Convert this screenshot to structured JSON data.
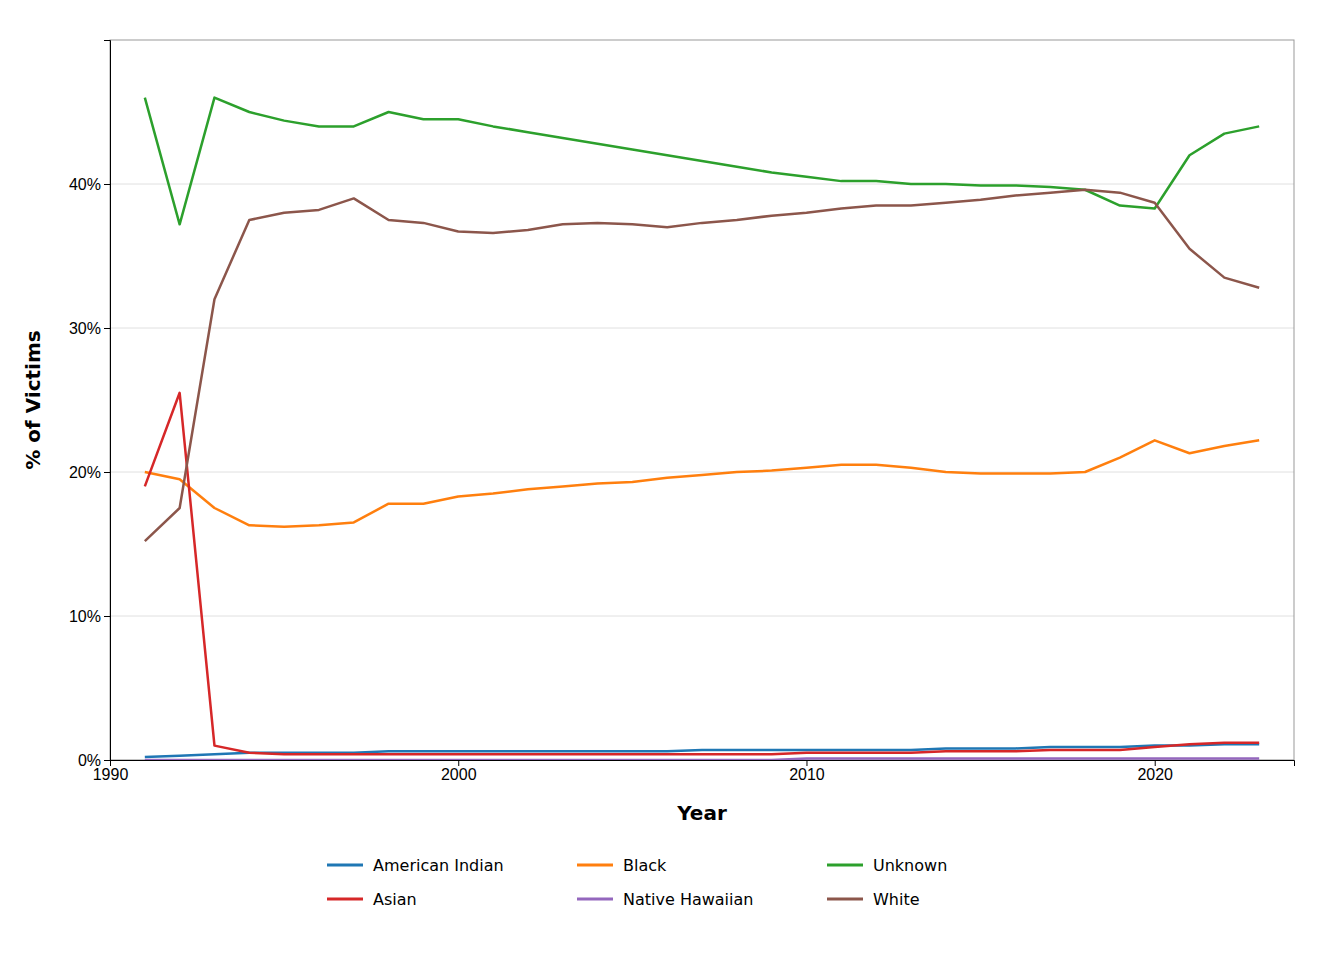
{
  "chart_data": {
    "type": "line",
    "xlabel": "Year",
    "ylabel": "% of Victims",
    "x": [
      1991,
      1992,
      1993,
      1994,
      1995,
      1996,
      1997,
      1998,
      1999,
      2000,
      2001,
      2002,
      2003,
      2004,
      2005,
      2006,
      2007,
      2008,
      2009,
      2010,
      2011,
      2012,
      2013,
      2014,
      2015,
      2016,
      2017,
      2018,
      2019,
      2020,
      2021,
      2022,
      2023
    ],
    "series": [
      {
        "name": "American Indian",
        "values": [
          0.002,
          0.003,
          0.004,
          0.005,
          0.005,
          0.005,
          0.005,
          0.006,
          0.006,
          0.006,
          0.006,
          0.006,
          0.006,
          0.006,
          0.006,
          0.006,
          0.007,
          0.007,
          0.007,
          0.007,
          0.007,
          0.007,
          0.007,
          0.008,
          0.008,
          0.008,
          0.009,
          0.009,
          0.009,
          0.01,
          0.01,
          0.011,
          0.011
        ]
      },
      {
        "name": "Black",
        "values": [
          0.2,
          0.195,
          0.175,
          0.163,
          0.162,
          0.163,
          0.165,
          0.178,
          0.178,
          0.183,
          0.185,
          0.188,
          0.19,
          0.192,
          0.193,
          0.196,
          0.198,
          0.2,
          0.201,
          0.203,
          0.205,
          0.205,
          0.203,
          0.2,
          0.199,
          0.199,
          0.199,
          0.2,
          0.21,
          0.222,
          0.213,
          0.218,
          0.222
        ]
      },
      {
        "name": "Unknown",
        "values": [
          0.46,
          0.372,
          0.46,
          0.45,
          0.444,
          0.44,
          0.44,
          0.45,
          0.445,
          0.445,
          0.44,
          0.436,
          0.432,
          0.428,
          0.424,
          0.42,
          0.416,
          0.412,
          0.408,
          0.405,
          0.402,
          0.402,
          0.4,
          0.4,
          0.399,
          0.399,
          0.398,
          0.396,
          0.385,
          0.383,
          0.42,
          0.435,
          0.44
        ]
      },
      {
        "name": "Asian",
        "values": [
          0.19,
          0.255,
          0.01,
          0.005,
          0.004,
          0.004,
          0.004,
          0.004,
          0.004,
          0.004,
          0.004,
          0.004,
          0.004,
          0.004,
          0.004,
          0.004,
          0.004,
          0.004,
          0.004,
          0.005,
          0.005,
          0.005,
          0.005,
          0.006,
          0.006,
          0.006,
          0.007,
          0.007,
          0.007,
          0.009,
          0.011,
          0.012,
          0.012
        ]
      },
      {
        "name": "Native Hawaiian",
        "values": [
          0.0,
          0.0,
          0.0,
          0.0,
          0.0,
          0.0,
          0.0,
          0.0,
          0.0,
          0.0,
          0.0,
          0.0,
          0.0,
          0.0,
          0.0,
          0.0,
          0.0,
          0.0,
          0.0,
          0.001,
          0.001,
          0.001,
          0.001,
          0.001,
          0.001,
          0.001,
          0.001,
          0.001,
          0.001,
          0.001,
          0.001,
          0.001,
          0.001
        ]
      },
      {
        "name": "White",
        "values": [
          0.152,
          0.175,
          0.32,
          0.375,
          0.38,
          0.382,
          0.39,
          0.375,
          0.373,
          0.367,
          0.366,
          0.368,
          0.372,
          0.373,
          0.372,
          0.37,
          0.373,
          0.375,
          0.378,
          0.38,
          0.383,
          0.385,
          0.385,
          0.387,
          0.389,
          0.392,
          0.394,
          0.396,
          0.394,
          0.387,
          0.355,
          0.335,
          0.328
        ]
      }
    ],
    "xlim": [
      1990,
      2024
    ],
    "xticks": [
      1990,
      2000,
      2010,
      2020
    ],
    "ylim": [
      0,
      0.5
    ],
    "yticks": [
      {
        "value": 0.0,
        "label": "0%"
      },
      {
        "value": 0.1,
        "label": "10%"
      },
      {
        "value": 0.2,
        "label": "20%"
      },
      {
        "value": 0.3,
        "label": "30%"
      },
      {
        "value": 0.4,
        "label": "40%"
      }
    ],
    "grid": true,
    "legend": "bottom"
  }
}
